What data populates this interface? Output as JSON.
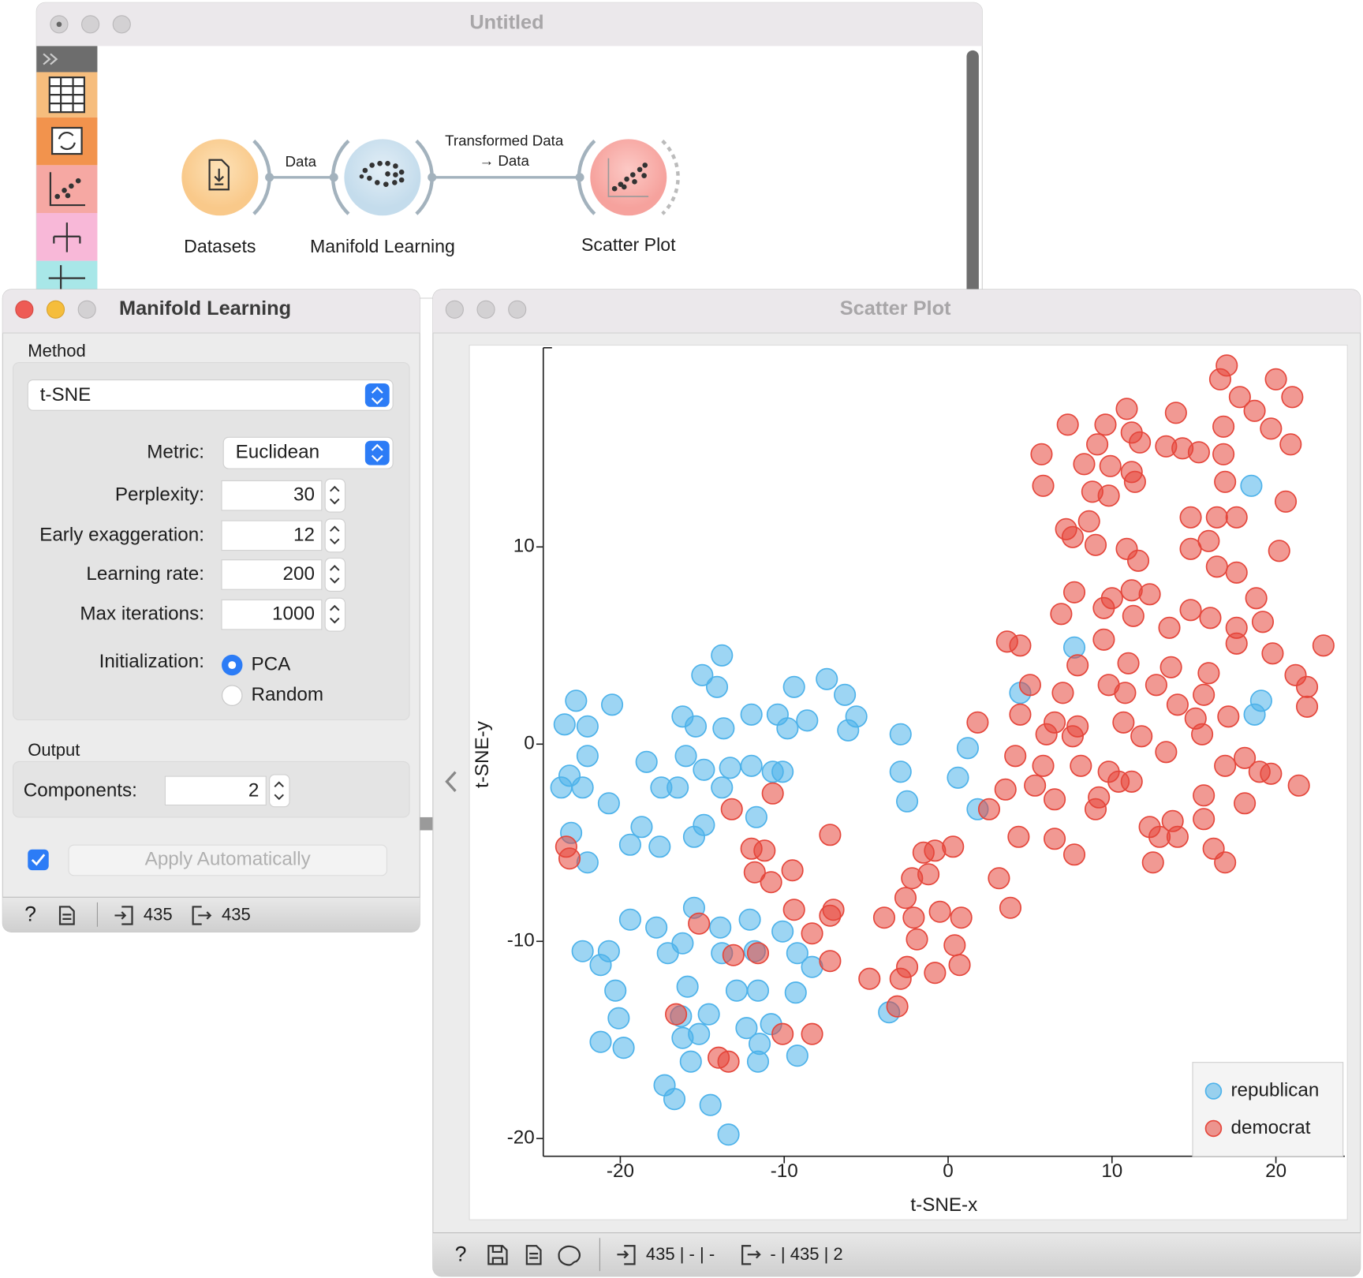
{
  "canvas": {
    "title": "Untitled",
    "link_labels": [
      "Data",
      "Transformed Data",
      "→ Data"
    ],
    "nodes": [
      "Datasets",
      "Manifold Learning",
      "Scatter Plot"
    ]
  },
  "manifold_dialog": {
    "title": "Manifold Learning",
    "method_label": "Method",
    "method": "t-SNE",
    "metric_label": "Metric:",
    "metric": "Euclidean",
    "params": [
      [
        "Perplexity:",
        30
      ],
      [
        "Early exaggeration:",
        12
      ],
      [
        "Learning rate:",
        200
      ],
      [
        "Max iterations:",
        1000
      ]
    ],
    "init_label": "Initialization:",
    "init_options": [
      "PCA",
      "Random"
    ],
    "output_label": "Output",
    "components_label": "Components:",
    "components": 2,
    "apply_button": "Apply Automatically",
    "status_in": 435,
    "status_out": 435
  },
  "scatter_window": {
    "title": "Scatter Plot",
    "status_in": "435 | - | -",
    "status_out": "- | 435 | 2"
  },
  "chart_data": {
    "type": "scatter",
    "xlabel": "t-SNE-x",
    "ylabel": "t-SNE-y",
    "xlim": [
      -24.7,
      24.2
    ],
    "ylim": [
      -20.9,
      20.1
    ],
    "xticks": [
      -20,
      -10,
      0,
      10,
      20
    ],
    "yticks": [
      -20,
      -10,
      0,
      10
    ],
    "legend": "bottom-right",
    "series": [
      {
        "name": "republican",
        "color": "#4db2ea",
        "x": [
          -13.8,
          -15.0,
          -14.1,
          -22.7,
          -20.5,
          -23.4,
          -22.0,
          -16.2,
          -15.4,
          -13.7,
          -12.0,
          -10.4,
          -9.4,
          -7.4,
          -6.3,
          -5.6,
          -6.1,
          -8.6,
          -9.8,
          -2.9,
          1.2,
          -2.9,
          -2.5,
          0.6,
          1.8,
          -22.0,
          -23.1,
          -22.3,
          -20.7,
          -23.6,
          -18.4,
          -17.5,
          -16.0,
          -16.5,
          -14.9,
          -13.8,
          -13.3,
          -12.0,
          -10.7,
          -10.1,
          -11.7,
          -23.0,
          -22.0,
          -18.7,
          -19.4,
          -17.6,
          -14.9,
          -15.5,
          -19.4,
          -17.8,
          -15.5,
          -13.9,
          -12.1,
          -10.1,
          -22.3,
          -20.7,
          -21.2,
          -16.2,
          -17.1,
          -13.8,
          -11.8,
          -9.2,
          -8.3,
          -20.3,
          -15.9,
          -12.9,
          -11.6,
          -9.3,
          -20.1,
          -16.3,
          -14.6,
          -15.2,
          -12.3,
          -10.8,
          -21.2,
          -19.8,
          -16.2,
          -11.5,
          -9.2,
          -15.7,
          -11.6,
          -17.3,
          -16.7,
          -14.5,
          -13.4,
          -3.6,
          18.5,
          7.7,
          4.4,
          19.1,
          18.7
        ],
        "y": [
          4.5,
          3.5,
          2.9,
          2.2,
          2.0,
          1.0,
          0.9,
          1.4,
          0.9,
          0.8,
          1.5,
          1.5,
          2.9,
          3.3,
          2.5,
          1.4,
          0.7,
          1.2,
          0.8,
          0.5,
          -0.2,
          -1.4,
          -2.9,
          -1.7,
          -3.3,
          -0.6,
          -1.6,
          -2.2,
          -3.0,
          -2.2,
          -0.9,
          -2.2,
          -0.6,
          -2.2,
          -1.3,
          -2.2,
          -1.2,
          -1.1,
          -1.4,
          -1.4,
          -3.7,
          -4.5,
          -6.0,
          -4.2,
          -5.1,
          -5.2,
          -4.1,
          -4.7,
          -8.9,
          -9.3,
          -8.3,
          -9.3,
          -8.9,
          -9.5,
          -10.5,
          -10.5,
          -11.2,
          -10.1,
          -10.6,
          -10.6,
          -10.5,
          -10.6,
          -11.3,
          -12.5,
          -12.3,
          -12.5,
          -12.5,
          -12.6,
          -13.9,
          -13.8,
          -13.7,
          -14.7,
          -14.4,
          -14.2,
          -15.1,
          -15.4,
          -14.9,
          -15.2,
          -15.8,
          -16.1,
          -16.1,
          -17.3,
          -18.0,
          -18.3,
          -19.8,
          -13.6,
          13.1,
          4.9,
          2.6,
          2.2,
          1.5
        ]
      },
      {
        "name": "democrat",
        "color": "#e5463b",
        "x": [
          17.0,
          16.6,
          20.0,
          17.8,
          21.0,
          18.7,
          10.9,
          13.9,
          7.3,
          9.6,
          11.2,
          16.8,
          19.7,
          5.7,
          8.3,
          9.1,
          11.7,
          13.3,
          14.3,
          15.3,
          16.8,
          20.9,
          9.9,
          11.2,
          5.8,
          8.8,
          9.8,
          11.4,
          16.9,
          20.6,
          8.6,
          7.2,
          7.6,
          14.8,
          16.4,
          17.6,
          9.0,
          10.9,
          11.6,
          14.8,
          15.9,
          20.2,
          16.4,
          17.6,
          7.7,
          10.0,
          11.2,
          12.3,
          18.8,
          6.9,
          9.5,
          11.3,
          14.8,
          16.0,
          13.5,
          17.6,
          19.2,
          3.6,
          4.4,
          9.5,
          17.6,
          19.8,
          22.9,
          7.9,
          11.0,
          13.6,
          15.9,
          21.2,
          5.0,
          7.0,
          9.8,
          10.8,
          12.7,
          14.0,
          15.6,
          21.9,
          21.9,
          1.8,
          4.4,
          6.5,
          7.9,
          10.7,
          11.8,
          15.1,
          15.5,
          17.1,
          6.0,
          7.6,
          4.1,
          13.3,
          18.1,
          5.8,
          8.1,
          16.9,
          9.8,
          3.5,
          5.3,
          6.5,
          9.2,
          10.4,
          11.2,
          19.0,
          19.7,
          21.4,
          9.0,
          15.6,
          18.1,
          2.5,
          -10.7,
          -13.2,
          12.3,
          13.7,
          15.6,
          4.3,
          6.5,
          12.9,
          14.0,
          7.7,
          16.2,
          12.5,
          16.9,
          -7.2,
          -12.0,
          -11.2,
          -1.5,
          -0.8,
          0.3,
          -23.3,
          -23.1,
          -11.8,
          -9.5,
          -10.8,
          -2.2,
          -1.2,
          3.1,
          -2.6,
          3.8,
          -9.4,
          -7.0,
          -7.2,
          -3.9,
          -2.1,
          -0.5,
          0.8,
          -15.2,
          -8.3,
          -1.9,
          0.4,
          -13.1,
          -11.6,
          -7.2,
          0.7,
          -2.5,
          -0.8,
          -4.8,
          -2.9,
          -3.1,
          -16.6,
          -10.1,
          -8.3,
          -14.0,
          -13.4
        ],
        "y": [
          19.2,
          18.5,
          18.5,
          17.6,
          17.6,
          16.9,
          17.0,
          16.8,
          16.2,
          16.2,
          15.8,
          16.1,
          16.0,
          14.7,
          14.2,
          15.2,
          15.3,
          15.1,
          15.0,
          14.8,
          14.7,
          15.2,
          14.1,
          13.8,
          13.1,
          12.8,
          12.6,
          13.3,
          13.3,
          12.3,
          11.3,
          10.9,
          10.5,
          11.5,
          11.5,
          11.5,
          10.1,
          9.9,
          9.3,
          9.9,
          10.3,
          9.8,
          9.0,
          8.7,
          7.7,
          7.4,
          7.8,
          7.6,
          7.4,
          6.6,
          6.9,
          6.5,
          6.8,
          6.4,
          5.9,
          5.9,
          6.2,
          5.2,
          5.0,
          5.3,
          5.1,
          4.6,
          5.0,
          4.0,
          4.1,
          3.9,
          3.6,
          3.5,
          3.0,
          2.6,
          3.0,
          2.6,
          3.0,
          2.0,
          2.5,
          2.9,
          1.9,
          1.1,
          1.5,
          1.1,
          0.9,
          1.1,
          0.4,
          1.3,
          0.5,
          1.4,
          0.5,
          0.4,
          -0.6,
          -0.4,
          -0.7,
          -1.1,
          -1.1,
          -1.1,
          -1.4,
          -2.3,
          -2.1,
          -2.8,
          -2.7,
          -1.9,
          -1.9,
          -1.4,
          -1.5,
          -2.1,
          -3.3,
          -2.6,
          -3.0,
          -3.3,
          -2.5,
          -3.3,
          -4.2,
          -3.9,
          -3.8,
          -4.7,
          -4.8,
          -4.7,
          -4.7,
          -5.6,
          -5.3,
          -6.0,
          -6.0,
          -4.6,
          -5.3,
          -5.4,
          -5.5,
          -5.4,
          -5.2,
          -5.2,
          -5.8,
          -6.5,
          -6.4,
          -7.0,
          -6.8,
          -6.6,
          -6.8,
          -7.8,
          -8.3,
          -8.4,
          -8.4,
          -8.7,
          -8.8,
          -8.8,
          -8.5,
          -8.8,
          -9.1,
          -9.6,
          -9.9,
          -10.2,
          -10.7,
          -10.6,
          -11.0,
          -11.2,
          -11.3,
          -11.6,
          -11.9,
          -11.9,
          -13.3,
          -13.7,
          -14.7,
          -14.7,
          -15.9,
          -16.1
        ]
      }
    ]
  }
}
